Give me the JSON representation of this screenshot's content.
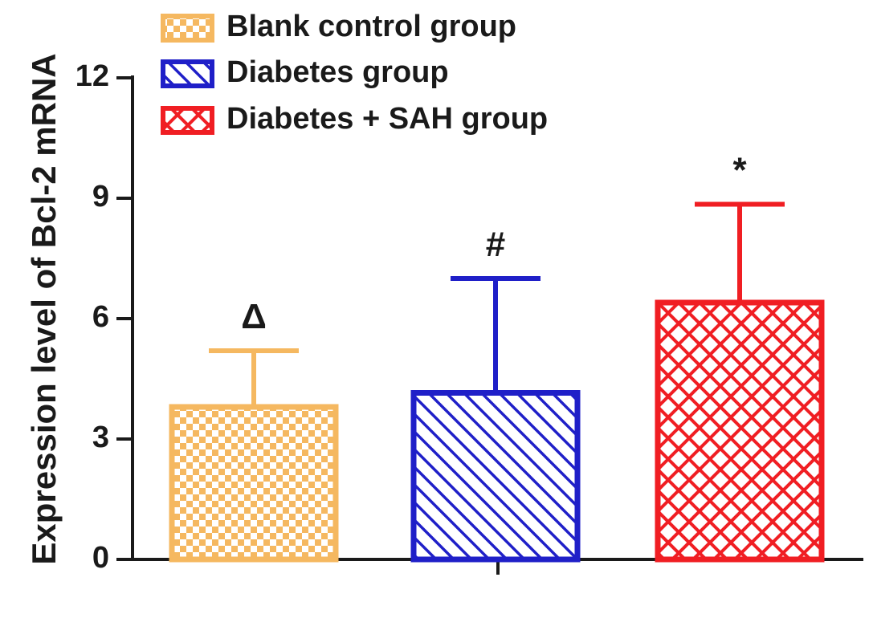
{
  "chart_data": {
    "type": "bar",
    "title": "",
    "xlabel": "",
    "ylabel": "Expression level of Bcl-2 mRNA",
    "ylim": [
      0,
      12
    ],
    "yticks": [
      0,
      3,
      6,
      9,
      12
    ],
    "grid": false,
    "legend_position": "top-left",
    "categories": [
      "Blank control group",
      "Diabetes group",
      "Diabetes + SAH group"
    ],
    "series": [
      {
        "name": "Blank control group",
        "value": 3.8,
        "error": 1.4,
        "annotation": "Δ",
        "color": "#f5b860",
        "pattern": "checker"
      },
      {
        "name": "Diabetes group",
        "value": 4.15,
        "error": 2.85,
        "annotation": "#",
        "color": "#1f1fc8",
        "pattern": "diagonal"
      },
      {
        "name": "Diabetes + SAH group",
        "value": 6.4,
        "error": 2.45,
        "annotation": "*",
        "color": "#f01e23",
        "pattern": "crosshatch"
      }
    ]
  }
}
